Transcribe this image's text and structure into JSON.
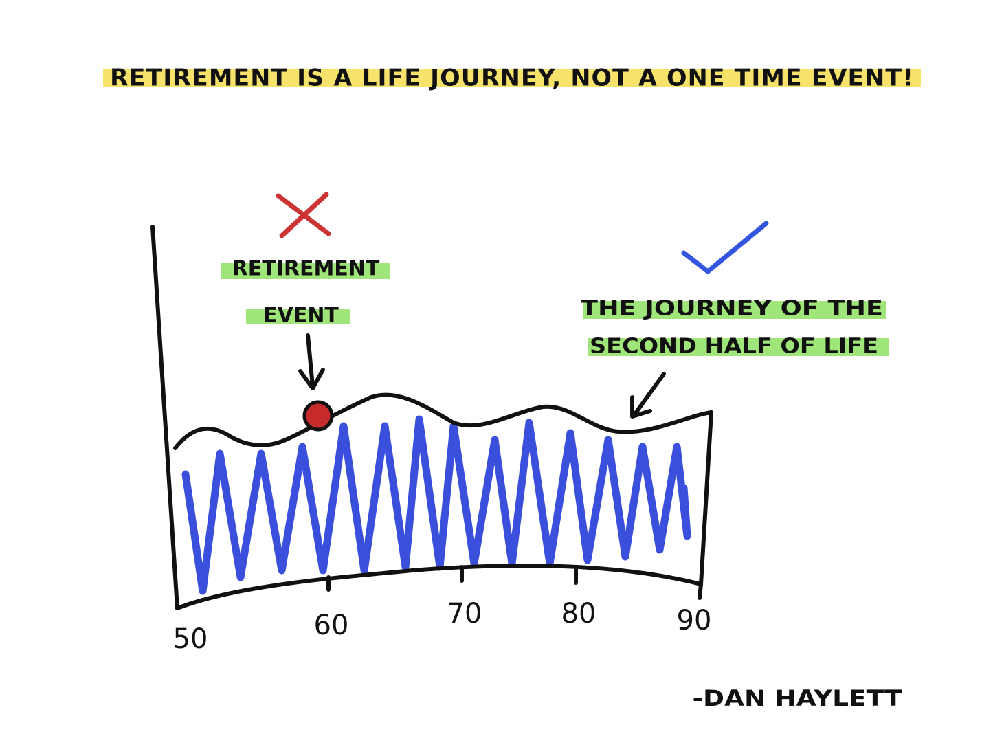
{
  "title": "RETIREMENT IS A LIFE JOURNEY, NOT A ONE TIME EVENT!",
  "annotations": {
    "wrong": [
      "RETIREMENT",
      "EVENT"
    ],
    "right": [
      "THE JOURNEY OF THE",
      "SECOND HALF OF LIFE"
    ]
  },
  "axis": {
    "ticks": [
      "50",
      "60",
      "70",
      "80",
      "90"
    ]
  },
  "signature": "-DAN HAYLETT"
}
